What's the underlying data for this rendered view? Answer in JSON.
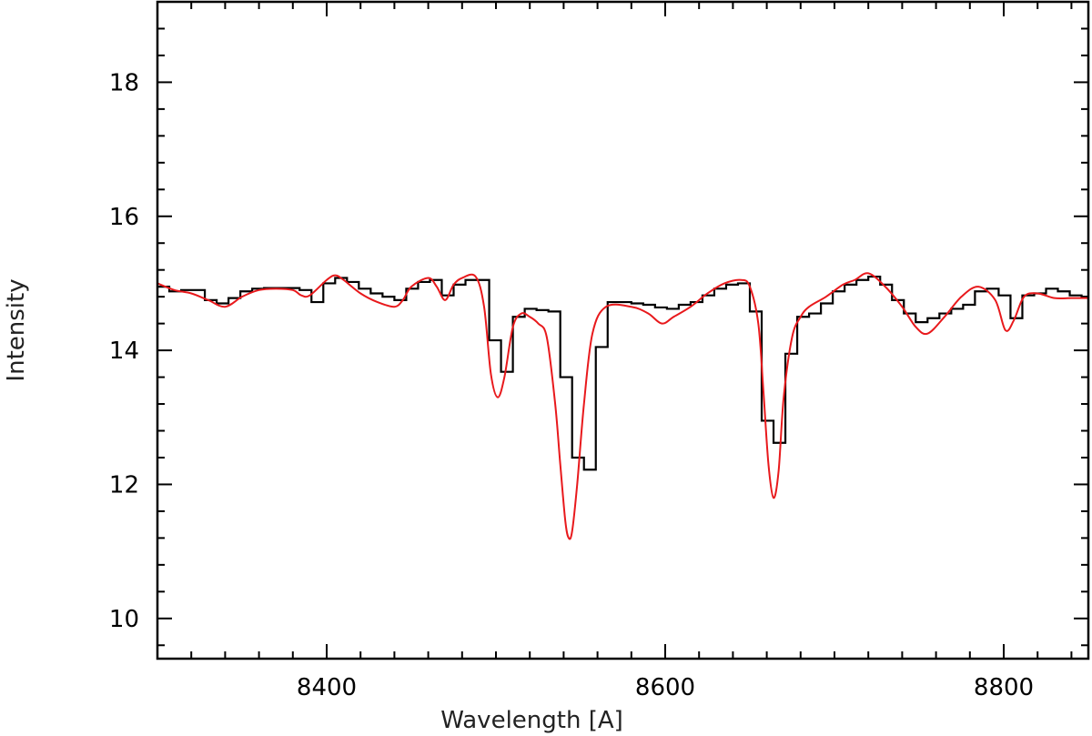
{
  "chart_data": {
    "type": "line",
    "title": "",
    "xlabel": "Wavelength [A]",
    "ylabel": "Intensity",
    "xlim": [
      8300,
      8850
    ],
    "ylim": [
      9.4,
      19.2
    ],
    "grid": false,
    "legend": "none",
    "x_ticks": [
      8400,
      8600,
      8800
    ],
    "x_tick_labels": [
      "8400",
      "8600",
      "8800"
    ],
    "y_ticks": [
      10,
      12,
      14,
      16,
      18
    ],
    "y_tick_labels": [
      "10",
      "12",
      "14",
      "16",
      "18"
    ],
    "x_minor_step": 20,
    "y_minor_step": 0.4,
    "series": [
      {
        "style": "step",
        "color": "#000000",
        "x": [
          8300,
          8307,
          8314,
          8321,
          8328,
          8335,
          8342,
          8349,
          8356,
          8363,
          8370,
          8377,
          8384,
          8391,
          8398,
          8405,
          8412,
          8419,
          8426,
          8433,
          8440,
          8447,
          8454,
          8461,
          8468,
          8475,
          8482,
          8489,
          8496,
          8503,
          8510,
          8517,
          8524,
          8531,
          8538,
          8545,
          8552,
          8559,
          8566,
          8573,
          8580,
          8587,
          8594,
          8601,
          8608,
          8615,
          8622,
          8629,
          8636,
          8643,
          8650,
          8657,
          8664,
          8671,
          8678,
          8685,
          8692,
          8699,
          8706,
          8713,
          8720,
          8727,
          8734,
          8741,
          8748,
          8755,
          8762,
          8769,
          8776,
          8783,
          8790,
          8797,
          8804,
          8811,
          8818,
          8825,
          8832,
          8839,
          8846
        ],
        "y": [
          14.95,
          14.88,
          14.9,
          14.9,
          14.75,
          14.7,
          14.78,
          14.88,
          14.92,
          14.93,
          14.93,
          14.93,
          14.9,
          14.72,
          15.0,
          15.08,
          15.02,
          14.92,
          14.85,
          14.8,
          14.75,
          14.92,
          15.02,
          15.05,
          14.82,
          14.98,
          15.05,
          15.05,
          14.15,
          13.68,
          14.5,
          14.62,
          14.6,
          14.58,
          13.6,
          12.4,
          12.22,
          14.05,
          14.72,
          14.72,
          14.7,
          14.68,
          14.64,
          14.62,
          14.68,
          14.72,
          14.82,
          14.92,
          14.98,
          15.0,
          14.58,
          12.95,
          12.62,
          13.95,
          14.5,
          14.55,
          14.7,
          14.88,
          14.98,
          15.05,
          15.1,
          14.98,
          14.75,
          14.55,
          14.42,
          14.48,
          14.55,
          14.62,
          14.68,
          14.88,
          14.92,
          14.82,
          14.48,
          14.82,
          14.85,
          14.92,
          14.88,
          14.82,
          14.8
        ]
      },
      {
        "style": "smooth",
        "color": "#e8191c",
        "x": [
          8300,
          8310,
          8320,
          8330,
          8340,
          8350,
          8360,
          8370,
          8380,
          8385,
          8390,
          8400,
          8405,
          8410,
          8420,
          8430,
          8440,
          8445,
          8450,
          8460,
          8465,
          8470,
          8475,
          8480,
          8488,
          8493,
          8497,
          8501,
          8505,
          8510,
          8515,
          8520,
          8525,
          8530,
          8535,
          8538,
          8541,
          8543,
          8545,
          8548,
          8552,
          8557,
          8565,
          8580,
          8590,
          8598,
          8605,
          8615,
          8625,
          8635,
          8645,
          8650,
          8655,
          8658,
          8661,
          8664,
          8667,
          8670,
          8675,
          8680,
          8685,
          8695,
          8705,
          8712,
          8720,
          8730,
          8740,
          8748,
          8755,
          8765,
          8775,
          8785,
          8795,
          8801,
          8806,
          8812,
          8820,
          8830,
          8840,
          8850
        ],
        "y": [
          15.0,
          14.9,
          14.85,
          14.75,
          14.65,
          14.8,
          14.9,
          14.92,
          14.9,
          14.82,
          14.82,
          15.05,
          15.12,
          15.05,
          14.85,
          14.72,
          14.65,
          14.75,
          14.95,
          15.08,
          14.95,
          14.75,
          14.98,
          15.08,
          15.1,
          14.65,
          13.65,
          13.3,
          13.6,
          14.35,
          14.55,
          14.5,
          14.4,
          14.2,
          13.2,
          12.3,
          11.45,
          11.2,
          11.3,
          12.0,
          13.2,
          14.25,
          14.65,
          14.65,
          14.55,
          14.4,
          14.5,
          14.65,
          14.85,
          15.0,
          15.05,
          14.95,
          14.4,
          13.4,
          12.3,
          11.8,
          12.2,
          13.3,
          14.2,
          14.5,
          14.65,
          14.8,
          14.98,
          15.05,
          15.15,
          14.95,
          14.65,
          14.35,
          14.25,
          14.5,
          14.8,
          14.95,
          14.75,
          14.3,
          14.45,
          14.8,
          14.85,
          14.78,
          14.78,
          14.78
        ]
      }
    ]
  }
}
